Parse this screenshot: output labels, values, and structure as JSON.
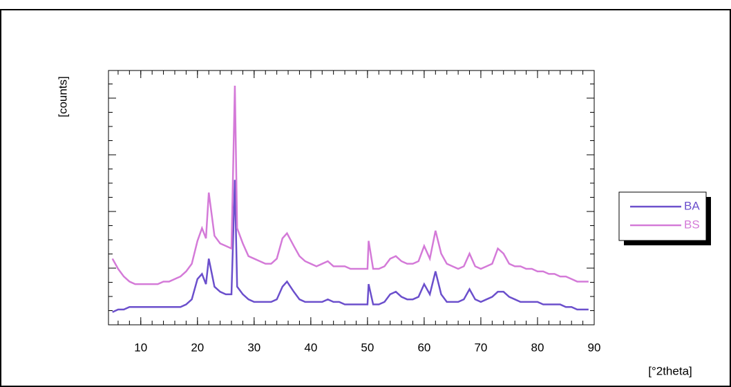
{
  "chart_data": {
    "type": "line",
    "x_label": "[°2theta]",
    "y_label": "[counts]",
    "x": [
      5,
      6,
      7,
      8,
      9,
      10,
      11,
      12,
      13,
      14,
      15,
      16,
      17,
      18,
      19,
      20,
      20.8,
      21.5,
      22,
      23,
      24,
      25,
      26,
      26.6,
      27,
      28,
      29,
      30,
      31,
      32,
      33,
      34,
      35,
      35.8,
      37,
      38,
      39,
      40,
      41,
      42,
      43,
      44,
      45,
      46,
      47,
      48,
      49,
      50,
      50.2,
      51,
      52,
      53,
      54,
      55,
      56,
      57,
      58,
      59,
      60,
      61,
      62,
      63,
      64,
      65,
      66,
      67,
      68,
      69,
      70,
      71,
      72,
      73,
      74,
      75,
      76,
      77,
      78,
      79,
      80,
      81,
      82,
      83,
      84,
      85,
      86,
      87,
      88,
      89
    ],
    "series": [
      {
        "name": "BA",
        "color": "#6b4fcc",
        "values": [
          5,
          6,
          6,
          7,
          7,
          7,
          7,
          7,
          7,
          7,
          7,
          7,
          7,
          8,
          10,
          18,
          20,
          16,
          26,
          15,
          13,
          12,
          12,
          57,
          15,
          12,
          10,
          9,
          9,
          9,
          9,
          10,
          15,
          17,
          13,
          10,
          9,
          9,
          9,
          9,
          10,
          9,
          9,
          8,
          8,
          8,
          8,
          8,
          16,
          8,
          8,
          9,
          12,
          13,
          11,
          10,
          10,
          11,
          16,
          12,
          21,
          12,
          9,
          9,
          9,
          10,
          14,
          10,
          9,
          10,
          11,
          13,
          13,
          11,
          10,
          9,
          9,
          9,
          9,
          8,
          8,
          8,
          8,
          7,
          7,
          6,
          6,
          6
        ]
      },
      {
        "name": "BS",
        "color": "#d47ad8",
        "values": [
          26,
          22,
          19,
          17,
          16,
          16,
          16,
          16,
          16,
          17,
          17,
          18,
          19,
          21,
          24,
          33,
          38,
          34,
          52,
          35,
          32,
          31,
          30,
          94,
          38,
          32,
          27,
          26,
          25,
          24,
          24,
          26,
          34,
          36,
          31,
          27,
          25,
          24,
          23,
          24,
          25,
          23,
          23,
          23,
          22,
          22,
          22,
          22,
          33,
          22,
          22,
          23,
          26,
          27,
          25,
          24,
          24,
          25,
          31,
          26,
          37,
          28,
          24,
          23,
          22,
          23,
          28,
          23,
          22,
          23,
          24,
          30,
          28,
          24,
          23,
          23,
          22,
          22,
          21,
          21,
          20,
          20,
          19,
          19,
          18,
          17,
          17,
          17
        ]
      }
    ],
    "xlim": [
      4.3,
      90
    ],
    "ylim": [
      0,
      100
    ],
    "xticks": [
      10,
      20,
      30,
      40,
      50,
      60,
      70,
      80,
      90
    ]
  }
}
